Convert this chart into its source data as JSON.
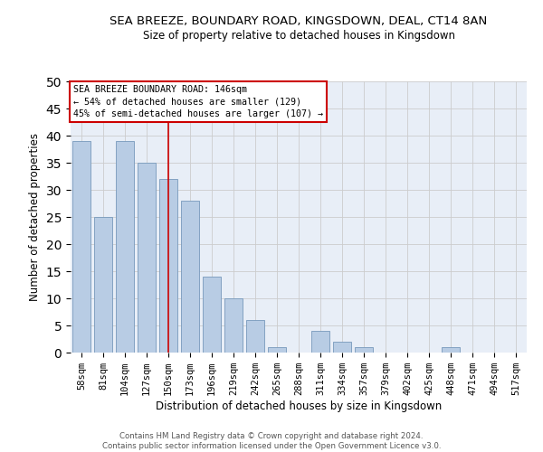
{
  "title": "SEA BREEZE, BOUNDARY ROAD, KINGSDOWN, DEAL, CT14 8AN",
  "subtitle": "Size of property relative to detached houses in Kingsdown",
  "xlabel": "Distribution of detached houses by size in Kingsdown",
  "ylabel": "Number of detached properties",
  "categories": [
    "58sqm",
    "81sqm",
    "104sqm",
    "127sqm",
    "150sqm",
    "173sqm",
    "196sqm",
    "219sqm",
    "242sqm",
    "265sqm",
    "288sqm",
    "311sqm",
    "334sqm",
    "357sqm",
    "379sqm",
    "402sqm",
    "425sqm",
    "448sqm",
    "471sqm",
    "494sqm",
    "517sqm"
  ],
  "values": [
    39,
    25,
    39,
    35,
    32,
    28,
    14,
    10,
    6,
    1,
    0,
    4,
    2,
    1,
    0,
    0,
    0,
    1,
    0,
    0,
    0
  ],
  "bar_color": "#b8cce4",
  "bar_edge_color": "#7799bb",
  "vline_x": 4,
  "vline_color": "#cc0000",
  "ylim": [
    0,
    50
  ],
  "yticks": [
    0,
    5,
    10,
    15,
    20,
    25,
    30,
    35,
    40,
    45,
    50
  ],
  "annotation_title": "SEA BREEZE BOUNDARY ROAD: 146sqm",
  "annotation_line1": "← 54% of detached houses are smaller (129)",
  "annotation_line2": "45% of semi-detached houses are larger (107) →",
  "annotation_box_color": "#ffffff",
  "annotation_box_edge": "#cc0000",
  "background_color": "#e8eef7",
  "footer_line1": "Contains HM Land Registry data © Crown copyright and database right 2024.",
  "footer_line2": "Contains public sector information licensed under the Open Government Licence v3.0."
}
